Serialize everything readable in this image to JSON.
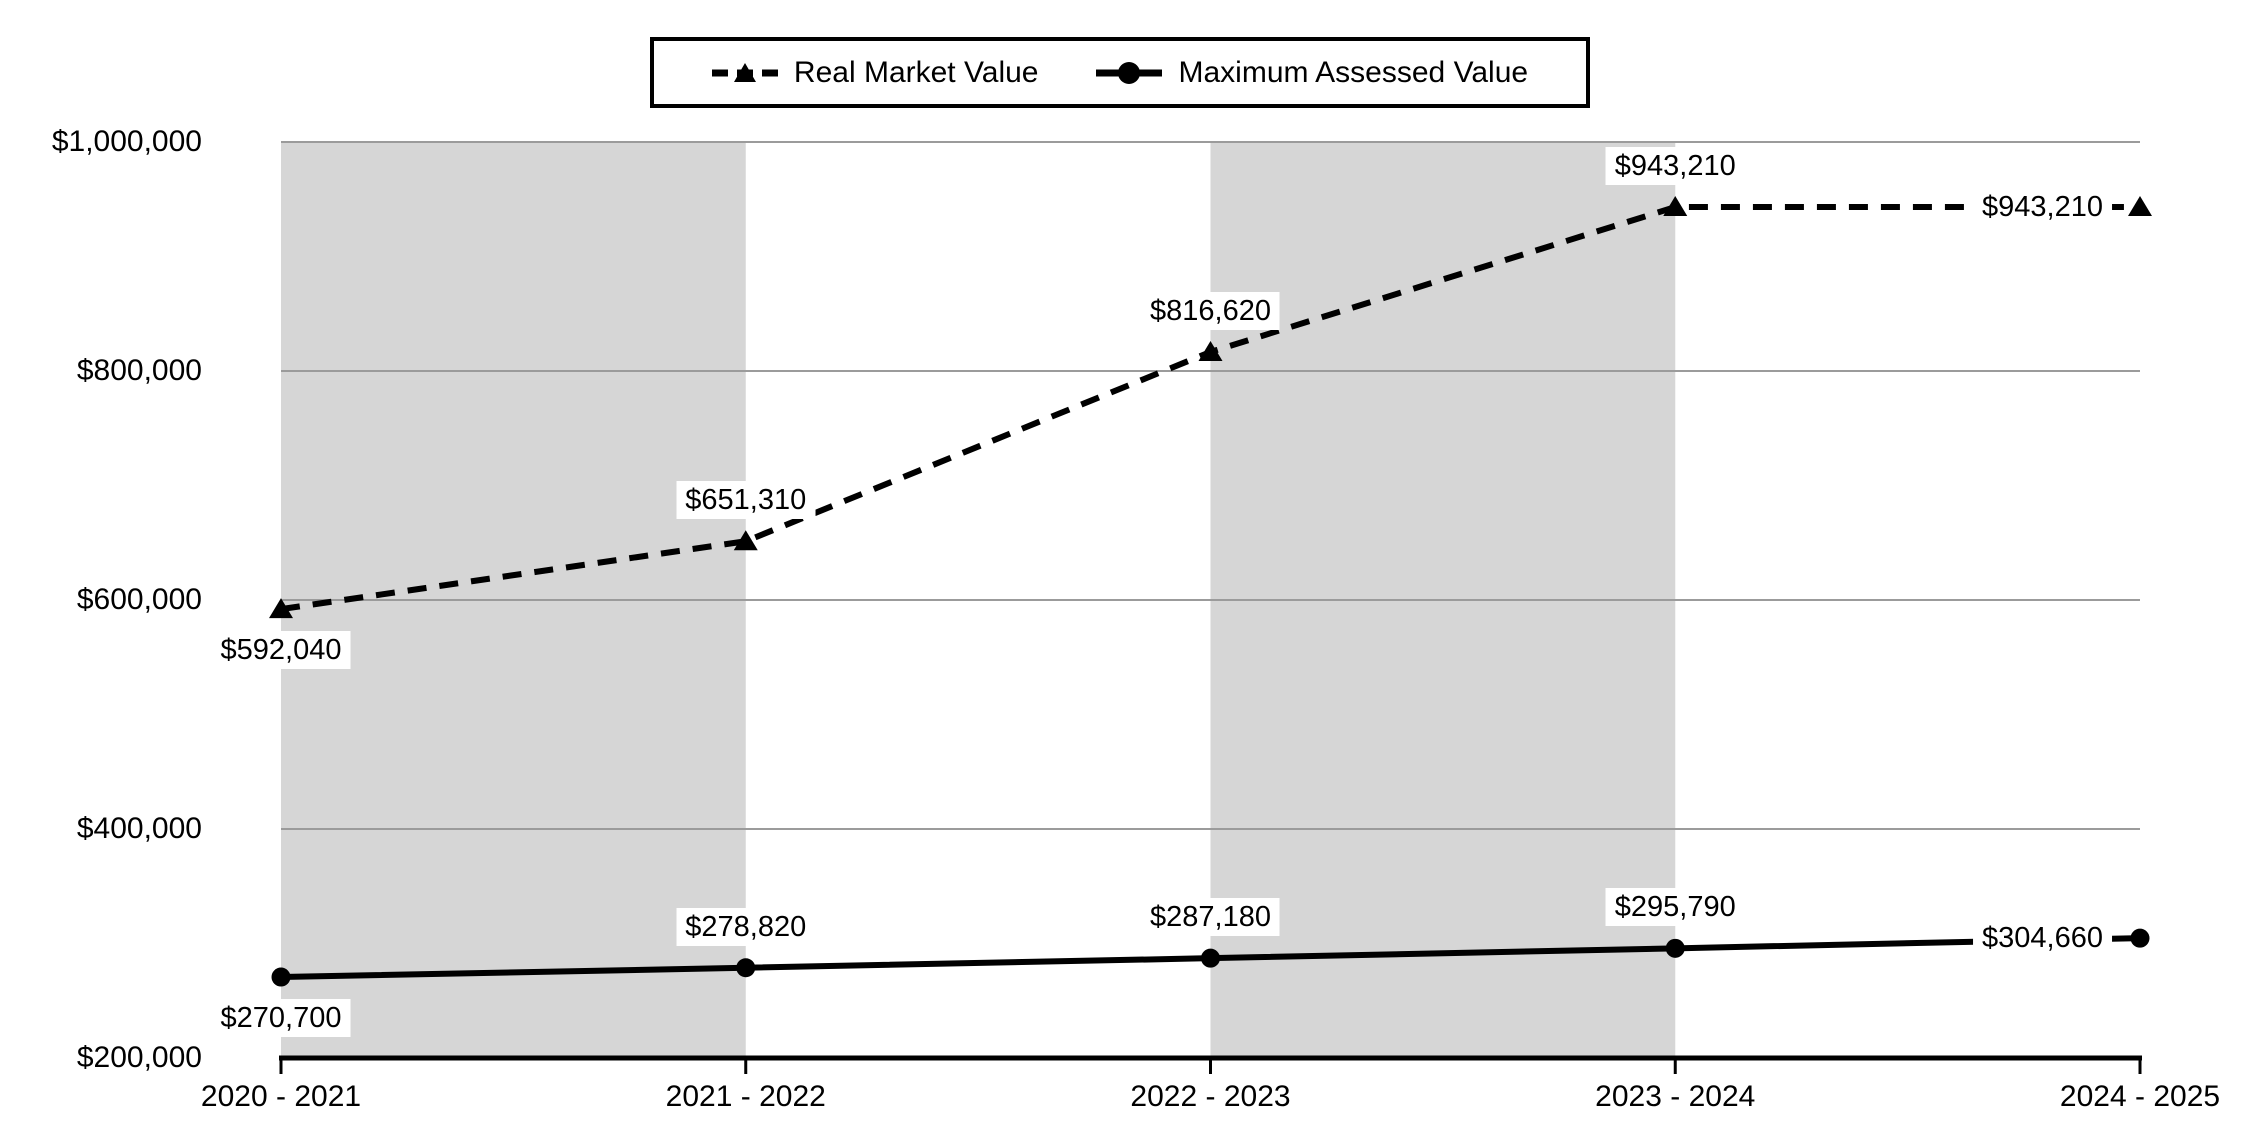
{
  "chart_data": {
    "type": "line",
    "title": "",
    "categories": [
      "2020 - 2021",
      "2021 - 2022",
      "2022 - 2023",
      "2023 - 2024",
      "2024 - 2025"
    ],
    "series": [
      {
        "name": "Real Market Value",
        "line_style": "dashed",
        "marker": "triangle",
        "values": [
          592040,
          651310,
          816620,
          943210,
          943210
        ],
        "data_labels": [
          "$592,040",
          "$651,310",
          "$816,620",
          "$943,210",
          "$943,210"
        ],
        "label_positions": [
          "below",
          "above",
          "above",
          "above",
          "left"
        ]
      },
      {
        "name": "Maximum Assessed Value",
        "line_style": "solid",
        "marker": "circle",
        "values": [
          270700,
          278820,
          287180,
          295790,
          304660
        ],
        "data_labels": [
          "$270,700",
          "$278,820",
          "$287,180",
          "$295,790",
          "$304,660"
        ],
        "label_positions": [
          "below",
          "above",
          "above",
          "above",
          "left"
        ]
      }
    ],
    "y_axis": {
      "min": 200000,
      "max": 1000000,
      "step": 200000,
      "tick_labels": [
        "$200,000",
        "$400,000",
        "$600,000",
        "$800,000",
        "$1,000,000"
      ]
    },
    "x_axis": {
      "tick_labels": [
        "2020 - 2021",
        "2021 - 2022",
        "2022 - 2023",
        "2023 - 2024",
        "2024 - 2025"
      ]
    },
    "shaded_bands": [
      [
        0,
        1
      ],
      [
        2,
        3
      ]
    ],
    "grid": true,
    "legend_position": "top-center",
    "colors": {
      "series": "#000000",
      "band": "#d6d6d6",
      "gridline": "#9b9b9b",
      "axis": "#000000",
      "label_bg": "#ffffff",
      "text": "#000000"
    }
  }
}
